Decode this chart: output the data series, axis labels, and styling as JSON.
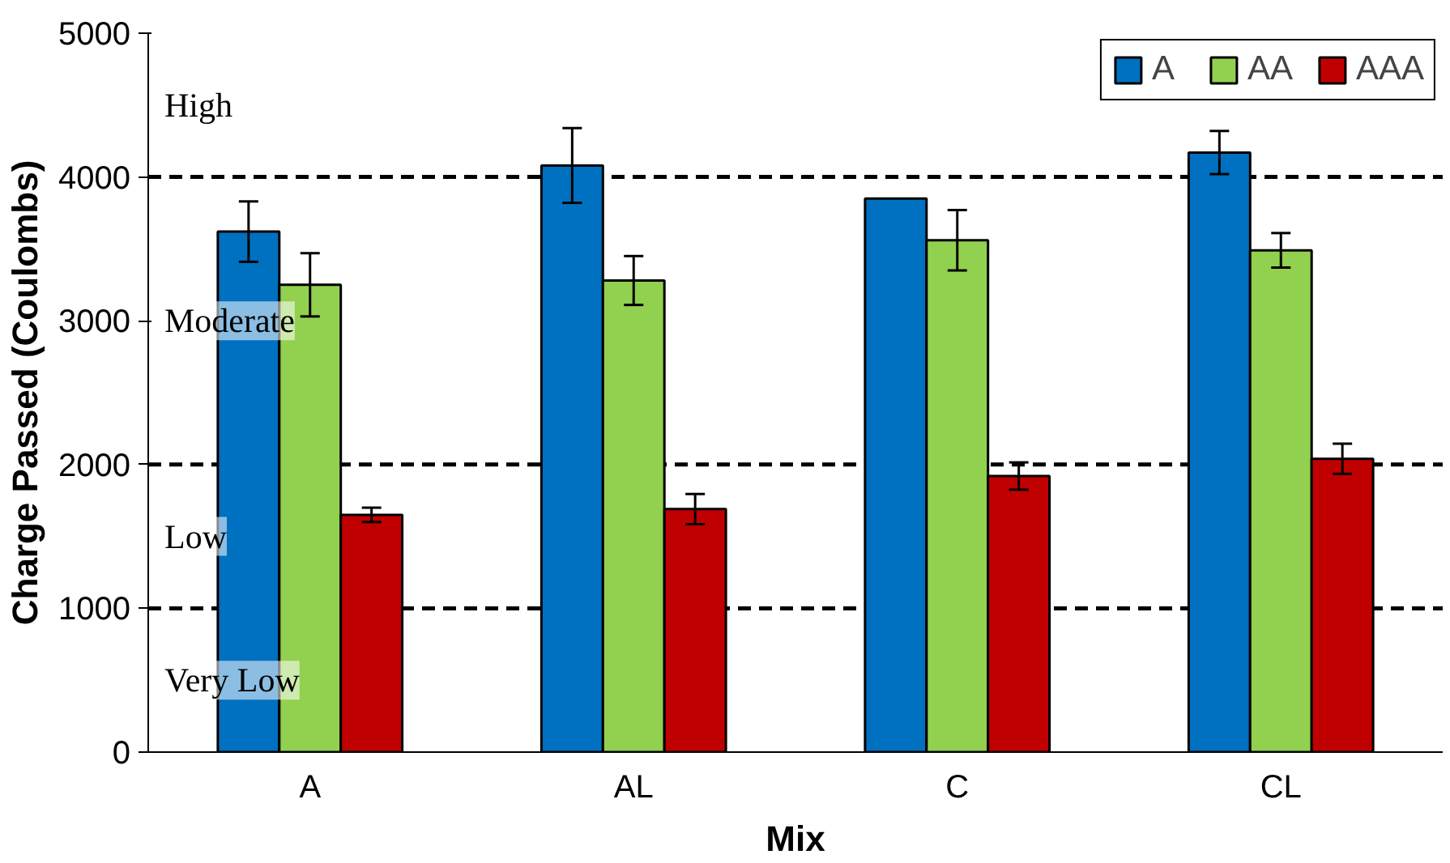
{
  "chart_data": {
    "type": "bar",
    "xlabel": "Mix",
    "ylabel": "Charge Passed (Coulombs)",
    "categories": [
      "A",
      "AL",
      "C",
      "CL"
    ],
    "series": [
      {
        "name": "A",
        "color": "#0070c0",
        "values": [
          3620,
          4080,
          3850,
          4170
        ],
        "errors": [
          210,
          260,
          null,
          150
        ]
      },
      {
        "name": "AA",
        "color": "#92d050",
        "values": [
          3250,
          3280,
          3560,
          3490
        ],
        "errors": [
          220,
          170,
          210,
          120
        ]
      },
      {
        "name": "AAA",
        "color": "#c00000",
        "values": [
          1650,
          1690,
          1920,
          2040
        ],
        "errors": [
          50,
          105,
          95,
          105
        ]
      }
    ],
    "ylim": [
      0,
      5000
    ],
    "yticks": [
      0,
      1000,
      2000,
      3000,
      4000,
      5000
    ],
    "ref_lines": [
      {
        "axis": "y",
        "value": 1000,
        "line_style": "dashed",
        "color": "#000000"
      },
      {
        "axis": "y",
        "value": 2000,
        "line_style": "dashed",
        "color": "#000000"
      },
      {
        "axis": "y",
        "value": 4000,
        "line_style": "dashed",
        "color": "#000000"
      }
    ],
    "annotations": [
      "High",
      "Moderate",
      "Low",
      "Very Low"
    ],
    "legend": "top right"
  }
}
